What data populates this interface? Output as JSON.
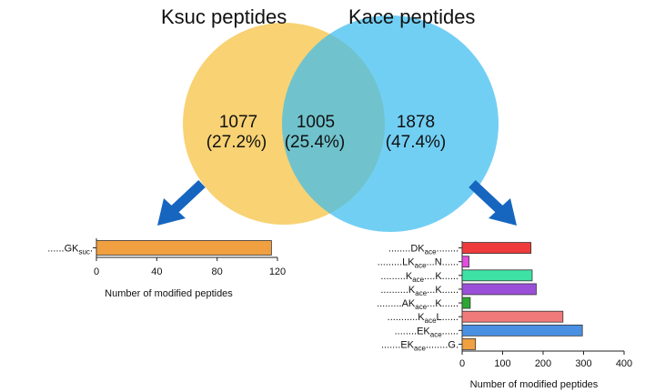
{
  "venn": {
    "left": {
      "title": "Ksuc peptides",
      "count": "1077",
      "pct": "(27.2%)",
      "color": "#f6c344"
    },
    "overlap": {
      "count": "1005",
      "pct": "(25.4%)"
    },
    "right": {
      "title": "Kace peptides",
      "count": "1878",
      "pct": "(47.4%)",
      "color": "#3cbcf0"
    }
  },
  "arrow_color": "#1666c0",
  "chart_data": [
    {
      "type": "bar",
      "orientation": "horizontal",
      "categories": [
        {
          "dots_before": "......",
          "main": "GK",
          "sub": "suc",
          "after": "",
          "dots_after": "."
        }
      ],
      "values": [
        116
      ],
      "colors": [
        "#f0a040"
      ],
      "xlim": [
        0,
        120
      ],
      "xticks": [
        "0",
        "40",
        "80",
        "120"
      ],
      "xlabel": "Number of modified peptides"
    },
    {
      "type": "bar",
      "orientation": "horizontal",
      "categories": [
        {
          "dots_before": "........",
          "main": "DK",
          "sub": "ace",
          "after": "",
          "dots_after": "........"
        },
        {
          "dots_before": "........",
          "main": ".LK",
          "sub": "ace",
          "after": "...N",
          "dots_after": "......"
        },
        {
          "dots_before": "........",
          "main": ".K",
          "sub": "ace",
          "after": "....K",
          "dots_after": "......"
        },
        {
          "dots_before": "........",
          "main": "..K",
          "sub": "ace",
          "after": "...K",
          "dots_after": "......"
        },
        {
          "dots_before": "........",
          "main": ".AK",
          "sub": "ace",
          "after": "...K",
          "dots_after": "......"
        },
        {
          "dots_before": "........",
          "main": "...K",
          "sub": "ace",
          "after": "L",
          "dots_after": "......"
        },
        {
          "dots_before": "........",
          "main": "EK",
          "sub": "ace",
          "after": "",
          "dots_after": "......"
        },
        {
          "dots_before": "......",
          "main": ".EK",
          "sub": "ace",
          "after": "........G.",
          "dots_after": ""
        }
      ],
      "values": [
        170,
        17,
        173,
        183,
        20,
        249,
        297,
        33
      ],
      "colors": [
        "#ef3b3b",
        "#e24ee0",
        "#3de2a4",
        "#9b4fd9",
        "#2ea832",
        "#f07a7a",
        "#4a90e2",
        "#f0a040"
      ],
      "xlim": [
        0,
        400
      ],
      "xticks": [
        "0",
        "100",
        "200",
        "300",
        "400"
      ],
      "xlabel": "Number of modified peptides"
    }
  ]
}
